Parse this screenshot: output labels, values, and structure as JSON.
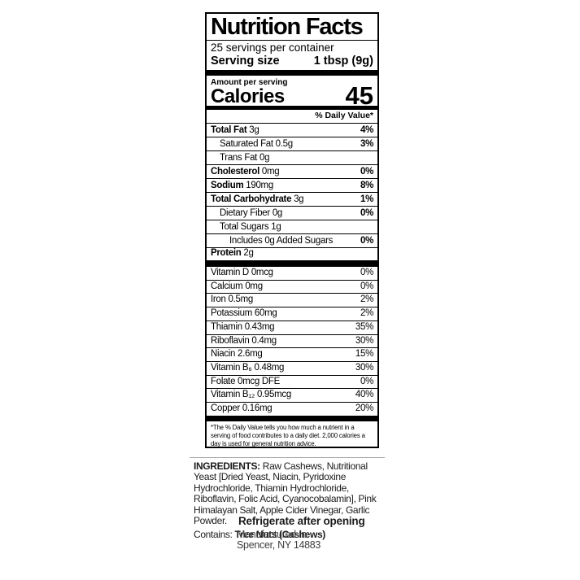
{
  "colors": {
    "text": "#000000",
    "background": "#ffffff",
    "muted": "#3d3d3d"
  },
  "label": {
    "title": "Nutrition Facts",
    "servings_per_container": "25 servings per container",
    "serving_size_label": "Serving size",
    "serving_size_value": "1 tbsp (9g)",
    "amount_per_serving": "Amount per serving",
    "calories_label": "Calories",
    "calories_value": "45",
    "daily_value_header": "% Daily Value*",
    "nutrient_rows": [
      {
        "bold": "Total Fat",
        "rest": " 3g",
        "dv": "4%",
        "dv_bold": true,
        "indent": 0
      },
      {
        "bold": "",
        "rest": "Saturated Fat 0.5g",
        "dv": "3%",
        "dv_bold": true,
        "indent": 1
      },
      {
        "bold": "",
        "rest": "Trans Fat 0g",
        "dv": "",
        "dv_bold": false,
        "indent": 1
      },
      {
        "bold": "Cholesterol",
        "rest": " 0mg",
        "dv": "0%",
        "dv_bold": true,
        "indent": 0
      },
      {
        "bold": "Sodium",
        "rest": " 190mg",
        "dv": "8%",
        "dv_bold": true,
        "indent": 0
      },
      {
        "bold": "Total Carbohydrate",
        "rest": " 3g",
        "dv": "1%",
        "dv_bold": true,
        "indent": 0
      },
      {
        "bold": "",
        "rest": "Dietary Fiber 0g",
        "dv": "0%",
        "dv_bold": true,
        "indent": 1
      },
      {
        "bold": "",
        "rest": "Total Sugars 1g",
        "dv": "",
        "dv_bold": false,
        "indent": 1
      },
      {
        "bold": "",
        "rest": "Includes 0g Added Sugars",
        "dv": "0%",
        "dv_bold": true,
        "indent": 2
      },
      {
        "bold": "Protein",
        "rest": " 2g",
        "dv": "",
        "dv_bold": false,
        "indent": 0
      }
    ],
    "vitamin_rows": [
      {
        "name": "Vitamin D 0mcg",
        "dv": "0%"
      },
      {
        "name": "Calcium 0mg",
        "dv": "0%"
      },
      {
        "name": "Iron 0.5mg",
        "dv": "2%"
      },
      {
        "name": "Potassium 60mg",
        "dv": "2%"
      },
      {
        "name": "Thiamin 0.43mg",
        "dv": "35%"
      },
      {
        "name": "Riboflavin 0.4mg",
        "dv": "30%"
      },
      {
        "name": "Niacin 2.6mg",
        "dv": "15%"
      },
      {
        "name": "Vitamin B₆ 0.48mg",
        "dv": "30%"
      },
      {
        "name": "Folate 0mcg DFE",
        "dv": "0%"
      },
      {
        "name": "Vitamin B₁₂ 0.95mcg",
        "dv": "40%"
      },
      {
        "name": "Copper 0.16mg",
        "dv": "20%"
      }
    ],
    "footnote": "*The % Daily Value tells you how much a nutrient in a serving of food contributes to a daily diet. 2,000 calories a day is used for general nutrition advice."
  },
  "ingredients": {
    "label": "INGREDIENTS:",
    "text": "Raw Cashews, Nutritional Yeast [Dried Yeast, Niacin, Pyridoxine Hydrochloride, Thiamin Hydrochloride, Riboflavin, Folic Acid, Cyanocobalamin], Pink Himalayan Salt, Apple Cider Vinegar, Garlic Powder.",
    "contains_label": "Contains:",
    "contains_value": "Tree Nuts (Cashews)"
  },
  "storage_note": "Refrigerate after opening",
  "manufacturer": {
    "line1": "Manufactured In:",
    "line2": "Spencer, NY 14883"
  }
}
